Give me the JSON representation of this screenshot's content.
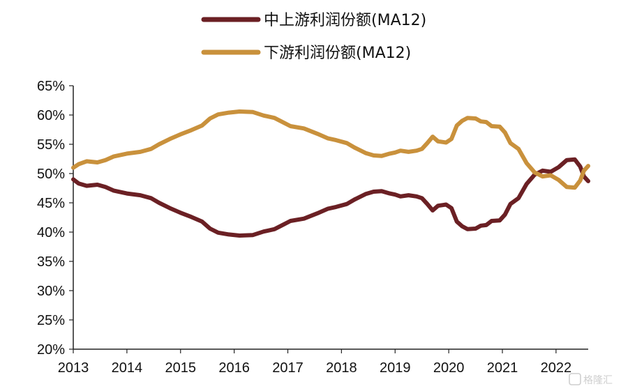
{
  "colors": {
    "upstream": "#6b2024",
    "downstream": "#c9913c",
    "axis": "#222222"
  },
  "watermark": {
    "label": "格隆汇",
    "icon": "g-logo-icon"
  },
  "chart_data": {
    "type": "line",
    "xlabel": "",
    "ylabel": "",
    "x_ticks": [
      "2013",
      "2014",
      "2015",
      "2016",
      "2017",
      "2018",
      "2019",
      "2020",
      "2021",
      "2022"
    ],
    "y_ticks": [
      "20%",
      "25%",
      "30%",
      "35%",
      "40%",
      "45%",
      "50%",
      "55%",
      "60%",
      "65%"
    ],
    "ylim": [
      20,
      65
    ],
    "xlim": [
      2013.0,
      2022.6
    ],
    "grid": false,
    "legend_position": "top-center",
    "series": [
      {
        "name": "中上游利润份额(MA12)",
        "color_key": "upstream",
        "points": [
          [
            2013.0,
            49.0
          ],
          [
            2013.1,
            48.3
          ],
          [
            2013.25,
            47.9
          ],
          [
            2013.45,
            48.1
          ],
          [
            2013.6,
            47.7
          ],
          [
            2013.75,
            47.1
          ],
          [
            2014.0,
            46.6
          ],
          [
            2014.25,
            46.3
          ],
          [
            2014.45,
            45.8
          ],
          [
            2014.6,
            45.0
          ],
          [
            2014.8,
            44.1
          ],
          [
            2015.0,
            43.3
          ],
          [
            2015.2,
            42.6
          ],
          [
            2015.4,
            41.8
          ],
          [
            2015.55,
            40.6
          ],
          [
            2015.7,
            39.9
          ],
          [
            2015.9,
            39.6
          ],
          [
            2016.1,
            39.4
          ],
          [
            2016.35,
            39.5
          ],
          [
            2016.55,
            40.1
          ],
          [
            2016.75,
            40.5
          ],
          [
            2016.9,
            41.2
          ],
          [
            2017.05,
            41.9
          ],
          [
            2017.3,
            42.3
          ],
          [
            2017.55,
            43.2
          ],
          [
            2017.75,
            44.0
          ],
          [
            2017.9,
            44.3
          ],
          [
            2018.1,
            44.8
          ],
          [
            2018.25,
            45.6
          ],
          [
            2018.45,
            46.5
          ],
          [
            2018.6,
            46.9
          ],
          [
            2018.75,
            47.0
          ],
          [
            2018.9,
            46.6
          ],
          [
            2019.0,
            46.4
          ],
          [
            2019.1,
            46.1
          ],
          [
            2019.25,
            46.3
          ],
          [
            2019.4,
            46.1
          ],
          [
            2019.5,
            45.8
          ],
          [
            2019.6,
            44.8
          ],
          [
            2019.7,
            43.7
          ],
          [
            2019.8,
            44.5
          ],
          [
            2019.95,
            44.7
          ],
          [
            2020.05,
            44.1
          ],
          [
            2020.15,
            41.8
          ],
          [
            2020.25,
            41.0
          ],
          [
            2020.35,
            40.5
          ],
          [
            2020.5,
            40.6
          ],
          [
            2020.6,
            41.1
          ],
          [
            2020.7,
            41.2
          ],
          [
            2020.8,
            41.9
          ],
          [
            2020.95,
            42.0
          ],
          [
            2021.05,
            43.0
          ],
          [
            2021.15,
            44.8
          ],
          [
            2021.3,
            45.8
          ],
          [
            2021.45,
            48.2
          ],
          [
            2021.6,
            49.8
          ],
          [
            2021.75,
            50.5
          ],
          [
            2021.9,
            50.3
          ],
          [
            2022.05,
            51.1
          ],
          [
            2022.2,
            52.3
          ],
          [
            2022.35,
            52.4
          ],
          [
            2022.45,
            51.2
          ],
          [
            2022.52,
            49.5
          ],
          [
            2022.6,
            48.7
          ]
        ]
      },
      {
        "name": "下游利润份额(MA12)",
        "color_key": "downstream",
        "points": [
          [
            2013.0,
            51.0
          ],
          [
            2013.1,
            51.6
          ],
          [
            2013.25,
            52.1
          ],
          [
            2013.45,
            51.9
          ],
          [
            2013.6,
            52.3
          ],
          [
            2013.75,
            52.9
          ],
          [
            2014.0,
            53.4
          ],
          [
            2014.25,
            53.7
          ],
          [
            2014.45,
            54.2
          ],
          [
            2014.6,
            55.0
          ],
          [
            2014.8,
            55.9
          ],
          [
            2015.0,
            56.7
          ],
          [
            2015.2,
            57.4
          ],
          [
            2015.4,
            58.2
          ],
          [
            2015.55,
            59.4
          ],
          [
            2015.7,
            60.1
          ],
          [
            2015.9,
            60.4
          ],
          [
            2016.1,
            60.6
          ],
          [
            2016.35,
            60.5
          ],
          [
            2016.55,
            59.9
          ],
          [
            2016.75,
            59.5
          ],
          [
            2016.9,
            58.8
          ],
          [
            2017.05,
            58.1
          ],
          [
            2017.3,
            57.7
          ],
          [
            2017.55,
            56.8
          ],
          [
            2017.75,
            56.0
          ],
          [
            2017.9,
            55.7
          ],
          [
            2018.1,
            55.2
          ],
          [
            2018.25,
            54.4
          ],
          [
            2018.45,
            53.5
          ],
          [
            2018.6,
            53.1
          ],
          [
            2018.75,
            53.0
          ],
          [
            2018.9,
            53.4
          ],
          [
            2019.0,
            53.6
          ],
          [
            2019.1,
            53.9
          ],
          [
            2019.25,
            53.7
          ],
          [
            2019.4,
            53.9
          ],
          [
            2019.5,
            54.2
          ],
          [
            2019.6,
            55.2
          ],
          [
            2019.7,
            56.3
          ],
          [
            2019.8,
            55.5
          ],
          [
            2019.95,
            55.3
          ],
          [
            2020.05,
            55.9
          ],
          [
            2020.15,
            58.2
          ],
          [
            2020.25,
            59.0
          ],
          [
            2020.35,
            59.5
          ],
          [
            2020.5,
            59.4
          ],
          [
            2020.6,
            58.9
          ],
          [
            2020.7,
            58.8
          ],
          [
            2020.8,
            58.1
          ],
          [
            2020.95,
            58.0
          ],
          [
            2021.05,
            57.0
          ],
          [
            2021.15,
            55.2
          ],
          [
            2021.3,
            54.2
          ],
          [
            2021.45,
            51.8
          ],
          [
            2021.6,
            50.2
          ],
          [
            2021.75,
            49.5
          ],
          [
            2021.9,
            49.7
          ],
          [
            2022.05,
            48.9
          ],
          [
            2022.2,
            47.7
          ],
          [
            2022.35,
            47.6
          ],
          [
            2022.45,
            48.8
          ],
          [
            2022.52,
            50.5
          ],
          [
            2022.6,
            51.3
          ]
        ]
      }
    ]
  }
}
